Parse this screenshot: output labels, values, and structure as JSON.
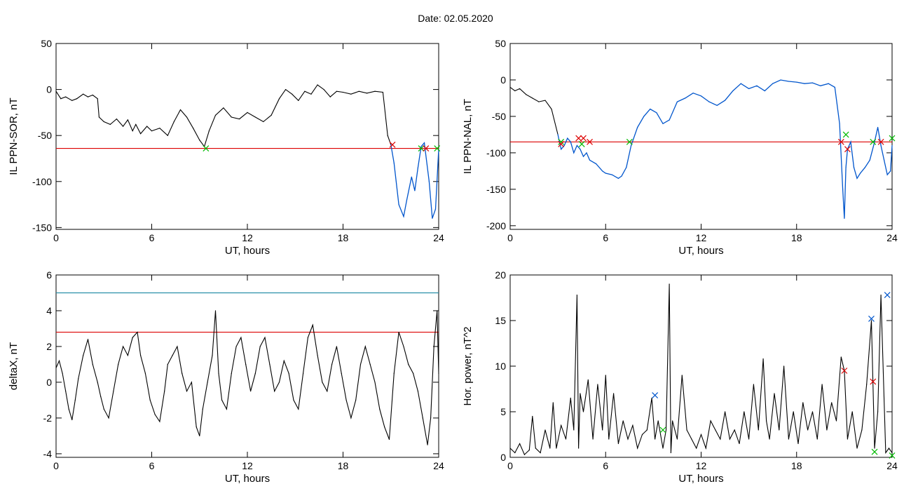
{
  "figure_title": "Date:  02.05.2020",
  "colors": {
    "trace": "#000000",
    "threshold": "#dd0000",
    "highlight": "#0055cc",
    "start_mark": "#00bb00",
    "end_mark": "#dd0000",
    "peak_mark": "#0055cc",
    "upper_line": "#2a8fa8"
  },
  "chart_data": [
    {
      "type": "line",
      "xlabel": "UT, hours",
      "ylabel": "IL PPN-SOR, nT",
      "xlim": [
        0,
        24
      ],
      "ylim": [
        -152,
        50
      ],
      "xticks": [
        0,
        6,
        12,
        18,
        24
      ],
      "yticks": [
        50,
        0,
        -50,
        -100,
        -150
      ],
      "grid": false,
      "series": [
        {
          "x": [
            0,
            0.3,
            0.6,
            1.0,
            1.3,
            1.7,
            2.0,
            2.3,
            2.6,
            2.7,
            3.0,
            3.4,
            3.8,
            4.2,
            4.5,
            4.8,
            5.0,
            5.3,
            5.7,
            6.0,
            6.5,
            7.0,
            7.4,
            7.8,
            8.2,
            8.6,
            9.0,
            9.3,
            9.6,
            10.0,
            10.5,
            11.0,
            11.5,
            12.0,
            12.5,
            13.0,
            13.5,
            14.0,
            14.4,
            14.8,
            15.2,
            15.6,
            16.0,
            16.4,
            16.8,
            17.2,
            17.6,
            18.0,
            18.5,
            19.0,
            19.5,
            20.0,
            20.5,
            20.8,
            21.0,
            21.2,
            21.5,
            21.8,
            22.0,
            22.3,
            22.5,
            22.7,
            22.9,
            23.1,
            23.4,
            23.6,
            23.8,
            24.0
          ],
          "y": [
            -2,
            -10,
            -8,
            -12,
            -10,
            -5,
            -8,
            -6,
            -10,
            -30,
            -35,
            -38,
            -32,
            -40,
            -33,
            -45,
            -38,
            -48,
            -40,
            -45,
            -42,
            -50,
            -35,
            -22,
            -30,
            -42,
            -55,
            -62,
            -45,
            -28,
            -20,
            -30,
            -32,
            -25,
            -30,
            -35,
            -28,
            -10,
            0,
            -5,
            -12,
            -2,
            -5,
            5,
            0,
            -8,
            -2,
            -3,
            -5,
            -2,
            -4,
            -2,
            -3,
            -50,
            -60,
            -80,
            -125,
            -138,
            -120,
            -95,
            -110,
            -85,
            -62,
            -58,
            -100,
            -140,
            -130,
            -65
          ],
          "highlight_from_x": 21.0
        }
      ],
      "threshold": -64,
      "markers": [
        {
          "x": 9.4,
          "y": -64,
          "kind": "start"
        },
        {
          "x": 21.1,
          "y": -60,
          "kind": "end"
        },
        {
          "x": 22.9,
          "y": -64,
          "kind": "start"
        },
        {
          "x": 23.2,
          "y": -64,
          "kind": "end"
        },
        {
          "x": 23.9,
          "y": -64,
          "kind": "start"
        }
      ]
    },
    {
      "type": "line",
      "xlabel": "UT, hours",
      "ylabel": "IL PPN-NAL, nT",
      "xlim": [
        0,
        24
      ],
      "ylim": [
        -205,
        50
      ],
      "xticks": [
        0,
        6,
        12,
        18,
        24
      ],
      "yticks": [
        50,
        0,
        -50,
        -100,
        -150,
        -200
      ],
      "grid": false,
      "series": [
        {
          "x": [
            0,
            0.3,
            0.6,
            1.0,
            1.4,
            1.8,
            2.2,
            2.6,
            3.0,
            3.2,
            3.4,
            3.6,
            3.8,
            4.0,
            4.2,
            4.4,
            4.6,
            4.8,
            5.0,
            5.4,
            5.8,
            6.0,
            6.4,
            6.8,
            7.0,
            7.3,
            7.6,
            8.0,
            8.4,
            8.8,
            9.2,
            9.6,
            10.0,
            10.5,
            11.0,
            11.5,
            12.0,
            12.5,
            13.0,
            13.5,
            14.0,
            14.5,
            15.0,
            15.5,
            16.0,
            16.5,
            17.0,
            17.5,
            18.0,
            18.5,
            19.0,
            19.5,
            20.0,
            20.4,
            20.7,
            20.9,
            21.0,
            21.1,
            21.2,
            21.4,
            21.6,
            21.8,
            22.0,
            22.3,
            22.6,
            22.9,
            23.1,
            23.3,
            23.5,
            23.7,
            23.9,
            24.0
          ],
          "y": [
            -10,
            -15,
            -12,
            -20,
            -25,
            -30,
            -28,
            -40,
            -75,
            -95,
            -90,
            -80,
            -85,
            -100,
            -90,
            -95,
            -105,
            -100,
            -110,
            -115,
            -125,
            -128,
            -130,
            -135,
            -132,
            -120,
            -90,
            -65,
            -50,
            -40,
            -45,
            -60,
            -55,
            -30,
            -25,
            -18,
            -22,
            -30,
            -35,
            -28,
            -15,
            -5,
            -12,
            -8,
            -15,
            -5,
            0,
            -2,
            -3,
            -5,
            -4,
            -8,
            -5,
            -10,
            -60,
            -150,
            -190,
            -120,
            -95,
            -85,
            -120,
            -135,
            -128,
            -120,
            -110,
            -85,
            -65,
            -90,
            -110,
            -130,
            -125,
            -90
          ],
          "highlight_from_x": 3.0
        }
      ],
      "threshold": -85,
      "markers": [
        {
          "x": 3.2,
          "y": -85,
          "kind": "start"
        },
        {
          "x": 3.2,
          "y": -88,
          "kind": "end"
        },
        {
          "x": 4.3,
          "y": -80,
          "kind": "end"
        },
        {
          "x": 4.6,
          "y": -80,
          "kind": "end"
        },
        {
          "x": 4.5,
          "y": -88,
          "kind": "start"
        },
        {
          "x": 5.0,
          "y": -85,
          "kind": "end"
        },
        {
          "x": 7.5,
          "y": -85,
          "kind": "start"
        },
        {
          "x": 20.8,
          "y": -85,
          "kind": "end"
        },
        {
          "x": 21.1,
          "y": -75,
          "kind": "start"
        },
        {
          "x": 21.2,
          "y": -95,
          "kind": "end"
        },
        {
          "x": 22.8,
          "y": -85,
          "kind": "start"
        },
        {
          "x": 23.3,
          "y": -85,
          "kind": "end"
        },
        {
          "x": 24.0,
          "y": -80,
          "kind": "start"
        }
      ]
    },
    {
      "type": "line",
      "xlabel": "UT, hours",
      "ylabel": "deltaX, nT",
      "xlim": [
        0,
        24
      ],
      "ylim": [
        -4.2,
        6
      ],
      "xticks": [
        0,
        6,
        12,
        18,
        24
      ],
      "yticks": [
        6,
        4,
        2,
        0,
        -2,
        -4
      ],
      "grid": false,
      "series": [
        {
          "x": [
            0,
            0.2,
            0.4,
            0.6,
            0.8,
            1.0,
            1.2,
            1.4,
            1.7,
            2.0,
            2.3,
            2.6,
            2.8,
            3.0,
            3.3,
            3.6,
            3.9,
            4.2,
            4.5,
            4.8,
            5.1,
            5.3,
            5.6,
            5.9,
            6.2,
            6.5,
            6.8,
            7.0,
            7.3,
            7.6,
            7.9,
            8.2,
            8.5,
            8.8,
            9.0,
            9.2,
            9.5,
            9.8,
            10.0,
            10.2,
            10.4,
            10.7,
            11.0,
            11.3,
            11.6,
            11.9,
            12.2,
            12.5,
            12.8,
            13.1,
            13.4,
            13.7,
            14.0,
            14.3,
            14.6,
            14.9,
            15.2,
            15.5,
            15.8,
            16.1,
            16.4,
            16.7,
            17.0,
            17.3,
            17.6,
            17.9,
            18.2,
            18.5,
            18.8,
            19.1,
            19.4,
            19.7,
            20.0,
            20.3,
            20.6,
            20.9,
            21.2,
            21.5,
            21.8,
            22.1,
            22.4,
            22.7,
            23.0,
            23.3,
            23.5,
            23.7,
            23.9,
            24.0
          ],
          "y": [
            0.8,
            1.2,
            0.5,
            -0.5,
            -1.5,
            -2.1,
            -1.0,
            0.2,
            1.5,
            2.4,
            1.0,
            0.0,
            -0.8,
            -1.5,
            -2.0,
            -0.5,
            1.0,
            2.0,
            1.5,
            2.5,
            2.8,
            1.5,
            0.5,
            -1.0,
            -1.8,
            -2.2,
            -0.5,
            1.0,
            1.5,
            2.0,
            0.5,
            -0.5,
            0.0,
            -2.5,
            -3.0,
            -1.5,
            0.0,
            1.5,
            4.0,
            0.5,
            -1.0,
            -1.5,
            0.5,
            2.0,
            2.5,
            1.0,
            -0.5,
            0.5,
            2.0,
            2.5,
            1.0,
            -0.5,
            0.0,
            1.2,
            0.5,
            -1.0,
            -1.5,
            0.5,
            2.5,
            3.2,
            1.5,
            0.0,
            -0.5,
            1.0,
            2.0,
            0.5,
            -1.0,
            -2.0,
            -1.0,
            1.0,
            2.0,
            1.0,
            0.0,
            -1.5,
            -2.5,
            -3.2,
            0.5,
            2.8,
            2.0,
            1.0,
            0.5,
            -0.5,
            -2.0,
            -3.5,
            -2.0,
            2.0,
            4.0,
            0.5
          ],
          "highlight_from_x": null
        }
      ],
      "threshold": 2.8,
      "upper_line": 5.0,
      "markers": []
    },
    {
      "type": "line",
      "xlabel": "UT, hours",
      "ylabel": "Hor. power, nT^2",
      "xlim": [
        0,
        24
      ],
      "ylim": [
        0,
        20
      ],
      "xticks": [
        0,
        6,
        12,
        18,
        24
      ],
      "yticks": [
        20,
        15,
        10,
        5,
        0
      ],
      "grid": false,
      "series": [
        {
          "x": [
            0,
            0.3,
            0.6,
            0.9,
            1.2,
            1.4,
            1.6,
            1.9,
            2.2,
            2.5,
            2.7,
            2.9,
            3.2,
            3.5,
            3.8,
            4.0,
            4.2,
            4.3,
            4.4,
            4.6,
            4.9,
            5.2,
            5.5,
            5.8,
            6.0,
            6.2,
            6.5,
            6.8,
            7.1,
            7.4,
            7.7,
            8.0,
            8.3,
            8.6,
            8.9,
            9.1,
            9.3,
            9.6,
            9.8,
            10.0,
            10.1,
            10.2,
            10.5,
            10.8,
            11.1,
            11.4,
            11.7,
            12.0,
            12.3,
            12.6,
            12.9,
            13.2,
            13.5,
            13.8,
            14.1,
            14.4,
            14.7,
            15.0,
            15.3,
            15.6,
            15.9,
            16.1,
            16.3,
            16.6,
            16.9,
            17.2,
            17.5,
            17.8,
            18.1,
            18.4,
            18.7,
            19.0,
            19.3,
            19.6,
            19.9,
            20.2,
            20.5,
            20.8,
            21.0,
            21.2,
            21.5,
            21.8,
            22.1,
            22.4,
            22.7,
            22.9,
            23.1,
            23.3,
            23.6,
            23.8,
            24.0
          ],
          "y": [
            1.0,
            0.5,
            1.5,
            0.3,
            0.8,
            4.5,
            1.0,
            0.5,
            3.0,
            1.0,
            6.0,
            1.0,
            3.5,
            2.0,
            6.5,
            3.0,
            17.8,
            1.0,
            7.0,
            5.0,
            8.5,
            2.0,
            8.0,
            3.0,
            9.0,
            2.0,
            7.0,
            1.5,
            4.0,
            2.0,
            3.5,
            1.0,
            2.5,
            3.0,
            6.5,
            2.0,
            4.0,
            1.0,
            3.0,
            19.0,
            0.5,
            4.0,
            2.0,
            9.0,
            3.0,
            2.0,
            1.0,
            2.5,
            1.0,
            4.0,
            3.0,
            2.0,
            5.0,
            2.0,
            3.0,
            1.5,
            5.0,
            2.0,
            8.0,
            3.0,
            10.8,
            4.0,
            2.0,
            7.0,
            3.0,
            10.0,
            2.0,
            5.0,
            1.5,
            6.0,
            3.0,
            5.0,
            2.0,
            8.0,
            3.0,
            6.0,
            4.0,
            11.0,
            9.5,
            2.0,
            5.0,
            1.0,
            3.0,
            8.0,
            15.0,
            1.0,
            5.0,
            17.8,
            0.5,
            1.0,
            0.5
          ],
          "highlight_from_x": null
        }
      ],
      "markers": [
        {
          "x": 9.1,
          "y": 6.8,
          "kind": "peak"
        },
        {
          "x": 9.6,
          "y": 3.0,
          "kind": "start"
        },
        {
          "x": 21.0,
          "y": 9.5,
          "kind": "end"
        },
        {
          "x": 22.7,
          "y": 15.2,
          "kind": "peak"
        },
        {
          "x": 22.8,
          "y": 8.3,
          "kind": "end"
        },
        {
          "x": 22.9,
          "y": 0.6,
          "kind": "start"
        },
        {
          "x": 23.7,
          "y": 17.8,
          "kind": "peak"
        },
        {
          "x": 24.0,
          "y": 0.2,
          "kind": "start"
        }
      ]
    }
  ]
}
